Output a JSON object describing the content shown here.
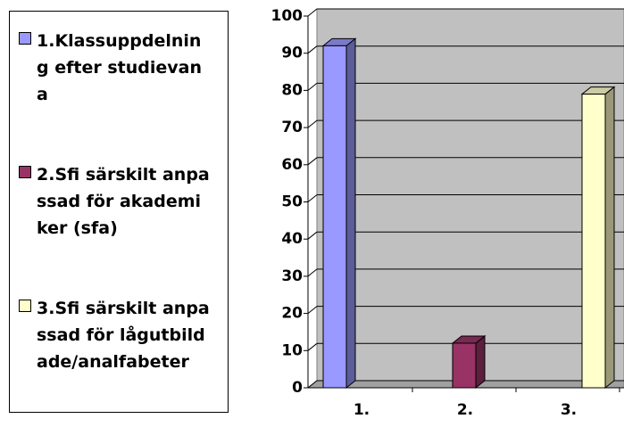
{
  "chart_data": {
    "type": "bar3d",
    "categories": [
      "1.",
      "2.",
      "3."
    ],
    "values": [
      92,
      12,
      79
    ],
    "colors": [
      "#9999ff",
      "#993366",
      "#ffffcc"
    ],
    "legend": [
      "1.Klassuppdelning efter studievana",
      "2.Sfi särskilt anpassad för akademiker (sfa)",
      "3.Sfi särskilt anpassad för lågutbildade/analfabeter"
    ],
    "ylim": [
      0,
      100
    ],
    "yticks": [
      0,
      10,
      20,
      30,
      40,
      50,
      60,
      70,
      80,
      90,
      100
    ],
    "grid": true
  }
}
